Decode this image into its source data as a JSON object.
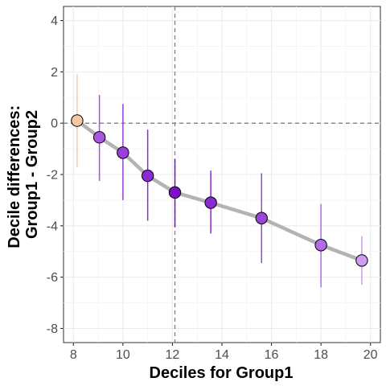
{
  "chart_data": {
    "type": "scatter",
    "xlabel": "Deciles for Group1",
    "ylabel": [
      "Decile differences:",
      "Group1 - Group2"
    ],
    "xlim": [
      7.6,
      20.4
    ],
    "ylim": [
      -8.55,
      4.55
    ],
    "x_ticks": [
      8,
      10,
      12,
      14,
      16,
      18,
      20
    ],
    "y_ticks": [
      -8,
      -6,
      -4,
      -2,
      0,
      2,
      4
    ],
    "x_tick_labels": [
      "8",
      "10",
      "12",
      "14",
      "16",
      "18",
      "20"
    ],
    "y_tick_labels": [
      "-8",
      "-6",
      "-4",
      "-2",
      "0",
      "2",
      "4"
    ],
    "grid": true,
    "reference_lines": {
      "hline": 0,
      "vline": 12.1
    },
    "line_color": "#b3b3b3",
    "points": [
      {
        "decile": 1,
        "x": 8.15,
        "y": 0.1,
        "ci_low": -1.7,
        "ci_high": 1.9,
        "color": "#f7c9a3"
      },
      {
        "decile": 2,
        "x": 9.05,
        "y": -0.55,
        "ci_low": -2.25,
        "ci_high": 1.1,
        "color": "#a855e0"
      },
      {
        "decile": 3,
        "x": 10.0,
        "y": -1.15,
        "ci_low": -3.0,
        "ci_high": 0.75,
        "color": "#9b3fda"
      },
      {
        "decile": 4,
        "x": 11.0,
        "y": -2.05,
        "ci_low": -3.8,
        "ci_high": -0.25,
        "color": "#8c2ad3"
      },
      {
        "decile": 5,
        "x": 12.1,
        "y": -2.7,
        "ci_low": -4.05,
        "ci_high": -1.4,
        "color": "#7d0fcc"
      },
      {
        "decile": 6,
        "x": 13.55,
        "y": -3.1,
        "ci_low": -4.3,
        "ci_high": -1.85,
        "color": "#8a2ad2"
      },
      {
        "decile": 7,
        "x": 15.6,
        "y": -3.7,
        "ci_low": -5.45,
        "ci_high": -1.95,
        "color": "#9b45db"
      },
      {
        "decile": 8,
        "x": 18.0,
        "y": -4.75,
        "ci_low": -6.4,
        "ci_high": -3.15,
        "color": "#b26ae6"
      },
      {
        "decile": 9,
        "x": 19.65,
        "y": -5.35,
        "ci_low": -6.3,
        "ci_high": -4.4,
        "color": "#cf9cf0"
      }
    ]
  }
}
